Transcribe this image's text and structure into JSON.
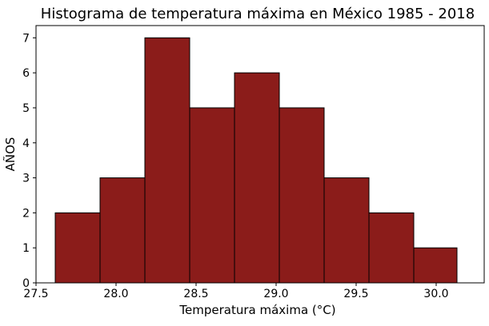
{
  "chart_data": {
    "type": "bar",
    "title": "Histograma de temperatura máxima en México 1985 - 2018",
    "xlabel": "Temperatura máxima (°C)",
    "ylabel": "AÑOS",
    "bins": [
      {
        "x0": 27.62,
        "x1": 27.9,
        "count": 2
      },
      {
        "x0": 27.9,
        "x1": 28.18,
        "count": 3
      },
      {
        "x0": 28.18,
        "x1": 28.46,
        "count": 7
      },
      {
        "x0": 28.46,
        "x1": 28.74,
        "count": 5
      },
      {
        "x0": 28.74,
        "x1": 29.02,
        "count": 6
      },
      {
        "x0": 29.02,
        "x1": 29.3,
        "count": 5
      },
      {
        "x0": 29.3,
        "x1": 29.58,
        "count": 3
      },
      {
        "x0": 29.58,
        "x1": 29.86,
        "count": 2
      },
      {
        "x0": 29.86,
        "x1": 30.13,
        "count": 1
      }
    ],
    "xlim": [
      27.5,
      30.3
    ],
    "ylim": [
      0,
      7.35
    ],
    "xticks": [
      "27.5",
      "28.0",
      "28.5",
      "29.0",
      "29.5",
      "30.0"
    ],
    "yticks": [
      "0",
      "1",
      "2",
      "3",
      "4",
      "5",
      "6",
      "7"
    ],
    "bar_color": "#8b1c1a",
    "edge_color": "#000000",
    "grid": false,
    "legend": "none"
  }
}
